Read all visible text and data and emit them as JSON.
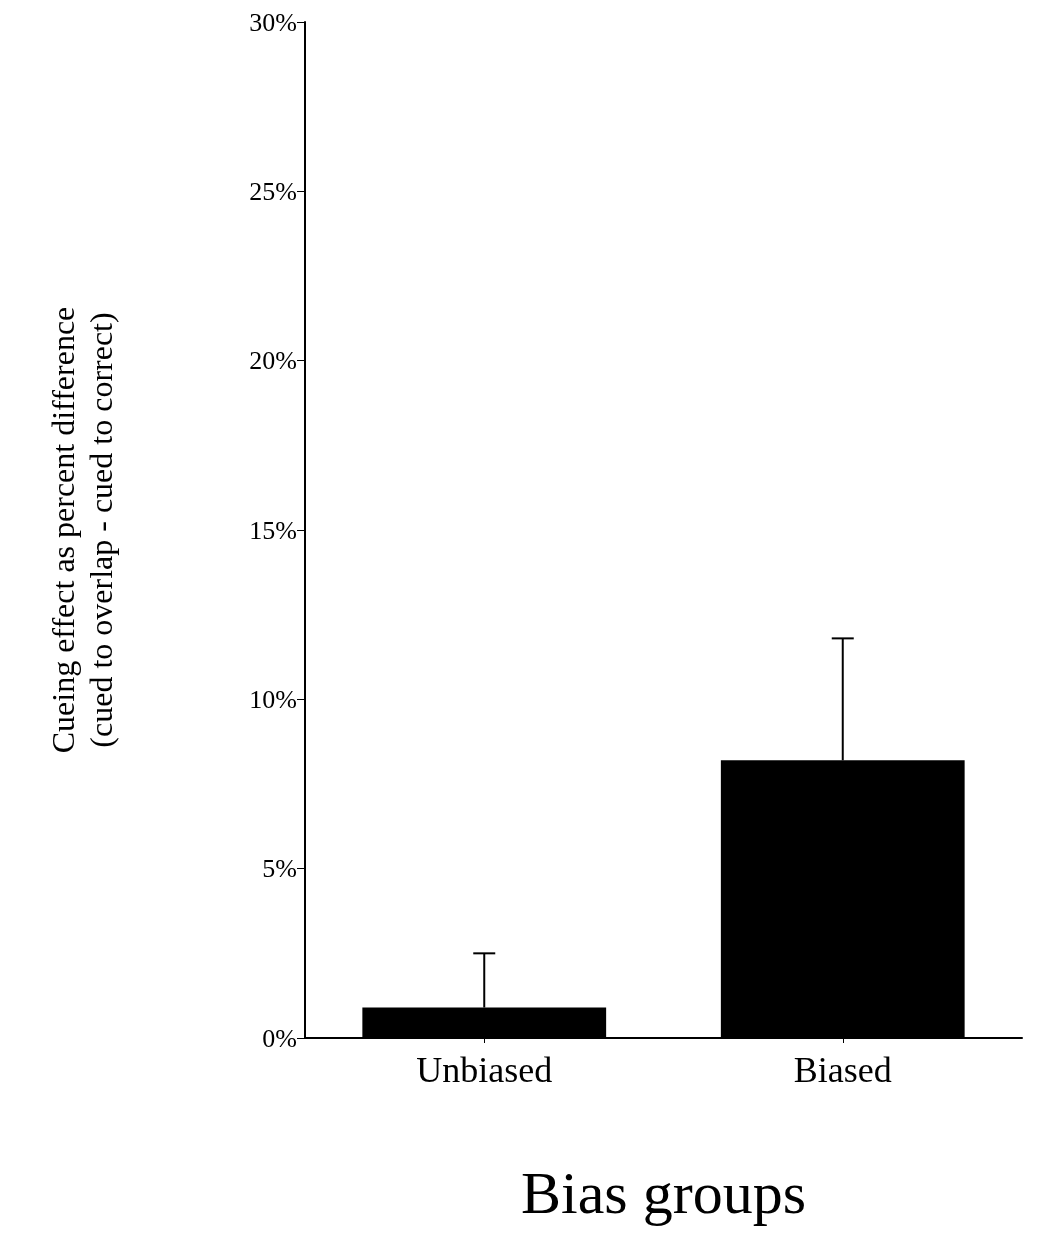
{
  "chart_data": {
    "type": "bar",
    "xlabel": "Bias groups",
    "ylabel": "Cueing effect as percent difference\n(cued to overlap - cued to correct)",
    "categories": [
      "Unbiased",
      "Biased"
    ],
    "values": [
      0.9,
      8.2
    ],
    "errors": [
      [
        0.9,
        2.5
      ],
      [
        8.2,
        11.8
      ]
    ],
    "color": "#000000",
    "ylim": [
      0,
      30
    ],
    "yticks": [
      {
        "value": 0,
        "label": "0%"
      },
      {
        "value": 5,
        "label": "5%"
      },
      {
        "value": 10,
        "label": "10%"
      },
      {
        "value": 15,
        "label": "15%"
      },
      {
        "value": 20,
        "label": "20%"
      },
      {
        "value": 25,
        "label": "25%"
      },
      {
        "value": 30,
        "label": "30%"
      }
    ],
    "grid": false
  }
}
